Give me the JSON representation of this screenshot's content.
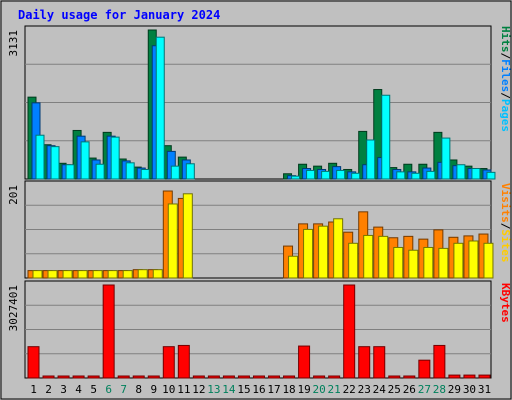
{
  "chart_data": {
    "type": "bar",
    "title": "Daily usage for January 2024",
    "x": [
      1,
      2,
      3,
      4,
      5,
      6,
      7,
      8,
      9,
      10,
      11,
      12,
      13,
      14,
      15,
      16,
      17,
      18,
      19,
      20,
      21,
      22,
      23,
      24,
      25,
      26,
      27,
      28,
      29,
      30,
      31
    ],
    "weekend_days": [
      6,
      7,
      13,
      14,
      20,
      21,
      27,
      28
    ],
    "panels": [
      {
        "id": "hits_files_pages",
        "ymax_label": "3131",
        "ylim": [
          0,
          3131
        ],
        "legend": [
          "Pages",
          "/",
          "Files",
          "/",
          "Hits"
        ],
        "series": [
          {
            "name": "Hits",
            "color": "#008040",
            "values": [
              1720,
              720,
              330,
              1020,
              440,
              980,
              420,
              250,
              3131,
              700,
              460,
              0,
              0,
              0,
              0,
              0,
              0,
              110,
              310,
              270,
              330,
              200,
              1000,
              1880,
              240,
              310,
              310,
              980,
              400,
              270,
              220
            ]
          },
          {
            "name": "Files",
            "color": "#0080ff",
            "values": [
              1600,
              700,
              300,
              900,
              400,
              900,
              380,
              230,
              2800,
              580,
              400,
              0,
              0,
              0,
              0,
              0,
              0,
              70,
              220,
              200,
              260,
              150,
              300,
              450,
              200,
              150,
              230,
              350,
              280,
              220,
              190
            ]
          },
          {
            "name": "Pages",
            "color": "#00ffff",
            "values": [
              920,
              680,
              300,
              780,
              310,
              880,
              340,
              200,
              2980,
              270,
              320,
              0,
              0,
              0,
              0,
              0,
              0,
              60,
              180,
              160,
              180,
              120,
              820,
              1760,
              150,
              120,
              160,
              860,
              300,
              220,
              140
            ]
          }
        ]
      },
      {
        "id": "sites_visits",
        "ymax_label": "201",
        "ylim": [
          0,
          201
        ],
        "legend": [
          "Sites",
          "/",
          "Visits"
        ],
        "series": [
          {
            "name": "Visits",
            "color": "#ff8000",
            "values": [
              16,
              16,
              16,
              16,
              16,
              16,
              16,
              18,
              18,
              188,
              172,
              0,
              0,
              0,
              0,
              0,
              0,
              69,
              117,
              117,
              121,
              99,
              143,
              110,
              87,
              90,
              84,
              104,
              88,
              91,
              95
            ]
          },
          {
            "name": "Sites",
            "color": "#ffff00",
            "values": [
              16,
              16,
              16,
              16,
              16,
              16,
              16,
              18,
              18,
              160,
              182,
              0,
              0,
              0,
              0,
              0,
              0,
              47,
              105,
              112,
              128,
              75,
              92,
              90,
              66,
              60,
              66,
              64,
              75,
              80,
              75
            ]
          }
        ]
      },
      {
        "id": "kbytes",
        "ymax_label": "3027401",
        "ylim": [
          0,
          3027401
        ],
        "legend": [
          "KBytes"
        ],
        "series": [
          {
            "name": "KBytes",
            "color": "#ff0000",
            "values": [
              1020000,
              0,
              0,
              0,
              0,
              3027401,
              0,
              0,
              0,
              1020000,
              1060000,
              0,
              0,
              0,
              0,
              0,
              0,
              0,
              1040000,
              0,
              0,
              3027401,
              1020000,
              1020000,
              0,
              0,
              580000,
              1060000,
              95000,
              95000,
              95000
            ]
          }
        ]
      }
    ],
    "colors": {
      "background": "#c0c0c0",
      "plot_bg": "#c0c0c0",
      "title": "#0000ff",
      "weekend_label": "#00805c",
      "weekday_label": "#000000",
      "gridline": "#808080"
    }
  }
}
